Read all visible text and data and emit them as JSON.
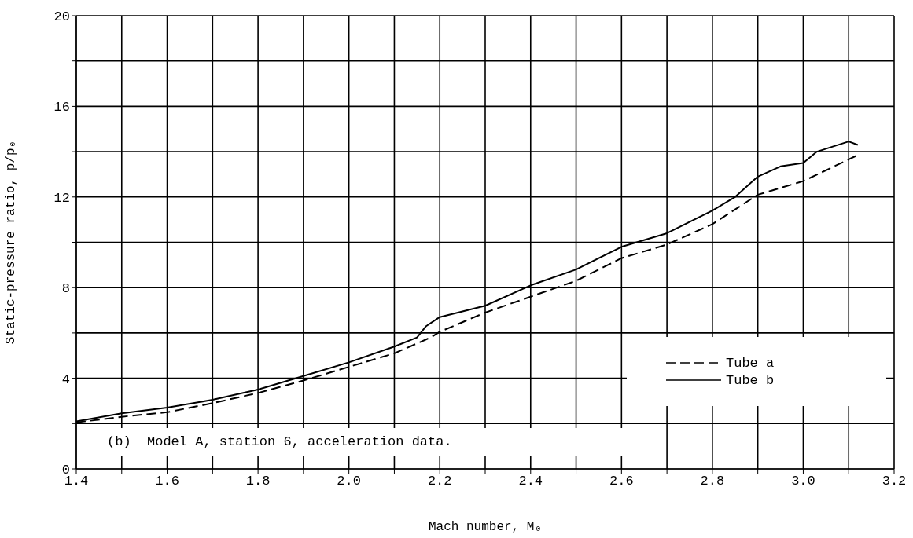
{
  "chart_data": {
    "type": "line",
    "xlabel": "Mach number, M₀",
    "ylabel": "Static-pressure ratio, p/p₀",
    "xlim": [
      1.4,
      3.2
    ],
    "ylim": [
      0,
      20
    ],
    "xticks": [
      1.4,
      {
        "value": 1.5,
        "label": null
      },
      1.6,
      {
        "value": 1.7,
        "label": null
      },
      1.8,
      {
        "value": 1.9,
        "label": null
      },
      {
        "value": 2.0,
        "label": "2.0"
      },
      {
        "value": 2.1,
        "label": null
      },
      2.2,
      {
        "value": 2.3,
        "label": null
      },
      2.4,
      {
        "value": 2.5,
        "label": null
      },
      2.6,
      {
        "value": 2.7,
        "label": null
      },
      2.8,
      {
        "value": 2.9,
        "label": null
      },
      {
        "value": 3.0,
        "label": "3.0"
      },
      {
        "value": 3.1,
        "label": null
      },
      3.2
    ],
    "yticks": [
      0,
      {
        "value": 2,
        "label": null
      },
      4,
      {
        "value": 6,
        "label": null
      },
      8,
      {
        "value": 10,
        "label": null
      },
      12,
      {
        "value": 14,
        "label": null
      },
      16,
      {
        "value": 18,
        "label": null
      },
      20
    ],
    "grid": true,
    "legend": "bottom right",
    "marker": "none",
    "annotations": [
      "(b)  Model A, station 6, acceleration data."
    ],
    "series": [
      {
        "name": "Tube a",
        "color": "#000000",
        "line_style": "dashed",
        "x": [
          1.4,
          1.5,
          1.6,
          1.7,
          1.8,
          1.9,
          2.0,
          2.1,
          2.18,
          2.2,
          2.3,
          2.4,
          2.5,
          2.6,
          2.7,
          2.8,
          2.9,
          3.0,
          3.12
        ],
        "values": [
          2.05,
          2.3,
          2.5,
          2.9,
          3.35,
          3.9,
          4.5,
          5.1,
          5.8,
          6.05,
          6.9,
          7.6,
          8.3,
          9.3,
          9.9,
          10.8,
          12.1,
          12.7,
          13.85
        ]
      },
      {
        "name": "Tube b",
        "color": "#000000",
        "line_style": "solid",
        "x": [
          1.4,
          1.5,
          1.6,
          1.7,
          1.8,
          1.9,
          2.0,
          2.1,
          2.15,
          2.17,
          2.2,
          2.3,
          2.4,
          2.5,
          2.6,
          2.7,
          2.8,
          2.85,
          2.9,
          2.95,
          3.0,
          3.03,
          3.1,
          3.12
        ],
        "values": [
          2.1,
          2.45,
          2.7,
          3.05,
          3.5,
          4.1,
          4.7,
          5.4,
          5.8,
          6.3,
          6.7,
          7.2,
          8.1,
          8.8,
          9.8,
          10.4,
          11.4,
          12.0,
          12.9,
          13.35,
          13.5,
          14.0,
          14.45,
          14.3
        ]
      }
    ]
  }
}
